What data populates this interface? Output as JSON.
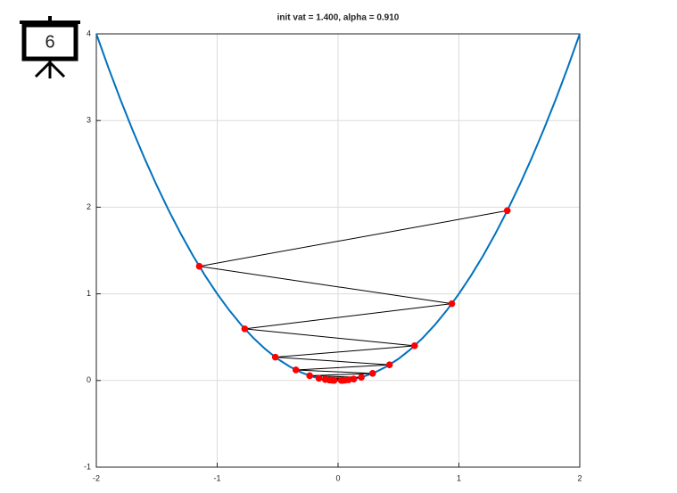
{
  "badge": "6",
  "chart_data": {
    "type": "line",
    "title": "init vat = 1.400, alpha = 0.910",
    "xlim": [
      -2,
      2
    ],
    "xticks": [
      -2,
      -1,
      0,
      1,
      2
    ],
    "ylim": [
      -1,
      4
    ],
    "yticks": [
      -1,
      0,
      1,
      2,
      3,
      4
    ],
    "grid": true,
    "series": [
      {
        "color": "#0072bd",
        "x": [
          -2,
          -1.9,
          -1.8,
          -1.7,
          -1.6,
          -1.5,
          -1.4,
          -1.3,
          -1.2,
          -1.1,
          -1,
          -0.9,
          -0.8,
          -0.7,
          -0.6,
          -0.5,
          -0.4,
          -0.3,
          -0.2,
          -0.1,
          0,
          0.1,
          0.2,
          0.3,
          0.4,
          0.5,
          0.6,
          0.7,
          0.8,
          0.9,
          1,
          1.1,
          1.2,
          1.3,
          1.4,
          1.5,
          1.6,
          1.7,
          1.8,
          1.9,
          2
        ],
        "values": [
          4,
          3.61,
          3.24,
          2.89,
          2.56,
          2.25,
          1.96,
          1.69,
          1.44,
          1.21,
          1,
          0.81,
          0.64,
          0.49,
          0.36,
          0.25,
          0.16,
          0.09,
          0.04,
          0.01,
          0,
          0.01,
          0.04,
          0.09,
          0.16,
          0.25,
          0.36,
          0.49,
          0.64,
          0.81,
          1,
          1.21,
          1.44,
          1.69,
          1.96,
          2.25,
          2.56,
          2.89,
          3.24,
          3.61,
          4
        ]
      },
      {
        "color": "#000000",
        "marker_color": "#ff0000",
        "x": [
          1.4,
          -1.148,
          0.94136,
          -0.771915,
          0.63297,
          -0.519036,
          0.425609,
          -0.348999,
          0.286179,
          -0.234667,
          0.192427,
          -0.15779,
          0.129388,
          -0.106098,
          0.087,
          -0.07134,
          0.058499,
          -0.047969,
          0.039335,
          -0.032254,
          0.026449
        ],
        "values": [
          1.96,
          1.3179,
          0.8862,
          0.5959,
          0.4007,
          0.2694,
          0.1811,
          0.1218,
          0.0819,
          0.0551,
          0.037,
          0.0249,
          0.0167,
          0.0113,
          0.0076,
          0.0051,
          0.0034,
          0.0023,
          0.0015,
          0.001,
          0.0007
        ]
      }
    ]
  }
}
